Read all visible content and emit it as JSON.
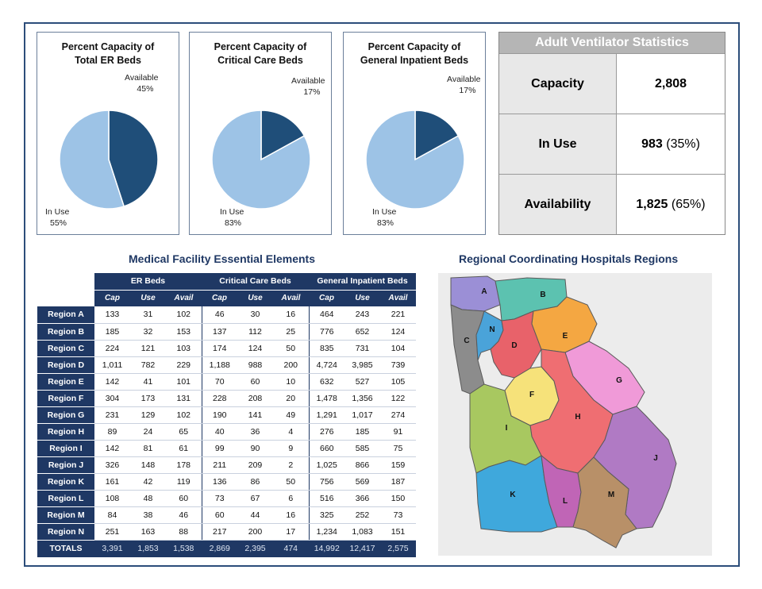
{
  "pies": [
    {
      "title": [
        "Percent Capacity of",
        "Total ER Beds"
      ],
      "available_label": "Available",
      "available_pct": "45%",
      "inuse_label": "In Use",
      "inuse_pct": "55%"
    },
    {
      "title": [
        "Percent Capacity of",
        "Critical Care Beds"
      ],
      "available_label": "Available",
      "available_pct": "17%",
      "inuse_label": "In Use",
      "inuse_pct": "83%"
    },
    {
      "title": [
        "Percent Capacity of",
        "General Inpatient Beds"
      ],
      "available_label": "Available",
      "available_pct": "17%",
      "inuse_label": "In Use",
      "inuse_pct": "83%"
    }
  ],
  "chart_data": [
    {
      "type": "pie",
      "title": "Percent Capacity of Total ER Beds",
      "categories": [
        "Available",
        "In Use"
      ],
      "values": [
        45,
        55
      ],
      "colors": [
        "#1f4e79",
        "#9dc3e6"
      ]
    },
    {
      "type": "pie",
      "title": "Percent Capacity of Critical Care Beds",
      "categories": [
        "Available",
        "In Use"
      ],
      "values": [
        17,
        83
      ],
      "colors": [
        "#1f4e79",
        "#9dc3e6"
      ]
    },
    {
      "type": "pie",
      "title": "Percent Capacity of General Inpatient Beds",
      "categories": [
        "Available",
        "In Use"
      ],
      "values": [
        17,
        83
      ],
      "colors": [
        "#1f4e79",
        "#9dc3e6"
      ]
    }
  ],
  "ventilator": {
    "title": "Adult Ventilator Statistics",
    "rows": [
      {
        "label": "Capacity",
        "value": "2,808",
        "pct": ""
      },
      {
        "label": "In Use",
        "value": "983",
        "pct": "(35%)"
      },
      {
        "label": "Availability",
        "value": "1,825",
        "pct": "(65%)"
      }
    ]
  },
  "table": {
    "title": "Medical Facility Essential Elements",
    "groups": [
      "ER Beds",
      "Critical Care Beds",
      "General Inpatient Beds"
    ],
    "subheaders": [
      "Cap",
      "Use",
      "Avail"
    ],
    "rows": [
      {
        "label": "Region A",
        "values": [
          "133",
          "31",
          "102",
          "46",
          "30",
          "16",
          "464",
          "243",
          "221"
        ]
      },
      {
        "label": "Region B",
        "values": [
          "185",
          "32",
          "153",
          "137",
          "112",
          "25",
          "776",
          "652",
          "124"
        ]
      },
      {
        "label": "Region C",
        "values": [
          "224",
          "121",
          "103",
          "174",
          "124",
          "50",
          "835",
          "731",
          "104"
        ]
      },
      {
        "label": "Region D",
        "values": [
          "1,011",
          "782",
          "229",
          "1,188",
          "988",
          "200",
          "4,724",
          "3,985",
          "739"
        ]
      },
      {
        "label": "Region E",
        "values": [
          "142",
          "41",
          "101",
          "70",
          "60",
          "10",
          "632",
          "527",
          "105"
        ]
      },
      {
        "label": "Region F",
        "values": [
          "304",
          "173",
          "131",
          "228",
          "208",
          "20",
          "1,478",
          "1,356",
          "122"
        ]
      },
      {
        "label": "Region G",
        "values": [
          "231",
          "129",
          "102",
          "190",
          "141",
          "49",
          "1,291",
          "1,017",
          "274"
        ]
      },
      {
        "label": "Region H",
        "values": [
          "89",
          "24",
          "65",
          "40",
          "36",
          "4",
          "276",
          "185",
          "91"
        ]
      },
      {
        "label": "Region I",
        "values": [
          "142",
          "81",
          "61",
          "99",
          "90",
          "9",
          "660",
          "585",
          "75"
        ]
      },
      {
        "label": "Region J",
        "values": [
          "326",
          "148",
          "178",
          "211",
          "209",
          "2",
          "1,025",
          "866",
          "159"
        ]
      },
      {
        "label": "Region K",
        "values": [
          "161",
          "42",
          "119",
          "136",
          "86",
          "50",
          "756",
          "569",
          "187"
        ]
      },
      {
        "label": "Region L",
        "values": [
          "108",
          "48",
          "60",
          "73",
          "67",
          "6",
          "516",
          "366",
          "150"
        ]
      },
      {
        "label": "Region M",
        "values": [
          "84",
          "38",
          "46",
          "60",
          "44",
          "16",
          "325",
          "252",
          "73"
        ]
      },
      {
        "label": "Region N",
        "values": [
          "251",
          "163",
          "88",
          "217",
          "200",
          "17",
          "1,234",
          "1,083",
          "151"
        ]
      }
    ],
    "totals": {
      "label": "TOTALS",
      "values": [
        "3,391",
        "1,853",
        "1,538",
        "2,869",
        "2,395",
        "474",
        "14,992",
        "12,417",
        "2,575"
      ]
    }
  },
  "map": {
    "title": "Regional Coordinating Hospitals Regions",
    "regions": [
      {
        "letter": "A",
        "color": "#9b8fd6"
      },
      {
        "letter": "B",
        "color": "#5cc2b0"
      },
      {
        "letter": "C",
        "color": "#8c8c8c"
      },
      {
        "letter": "N",
        "color": "#4aa3d9"
      },
      {
        "letter": "D",
        "color": "#e8626a"
      },
      {
        "letter": "E",
        "color": "#f4a742"
      },
      {
        "letter": "F",
        "color": "#f6e27a"
      },
      {
        "letter": "G",
        "color": "#f09ad8"
      },
      {
        "letter": "H",
        "color": "#ef6e72"
      },
      {
        "letter": "I",
        "color": "#a8c860"
      },
      {
        "letter": "J",
        "color": "#b07ac4"
      },
      {
        "letter": "K",
        "color": "#3fa8dc"
      },
      {
        "letter": "L",
        "color": "#c065b6"
      },
      {
        "letter": "M",
        "color": "#b89068"
      }
    ]
  }
}
